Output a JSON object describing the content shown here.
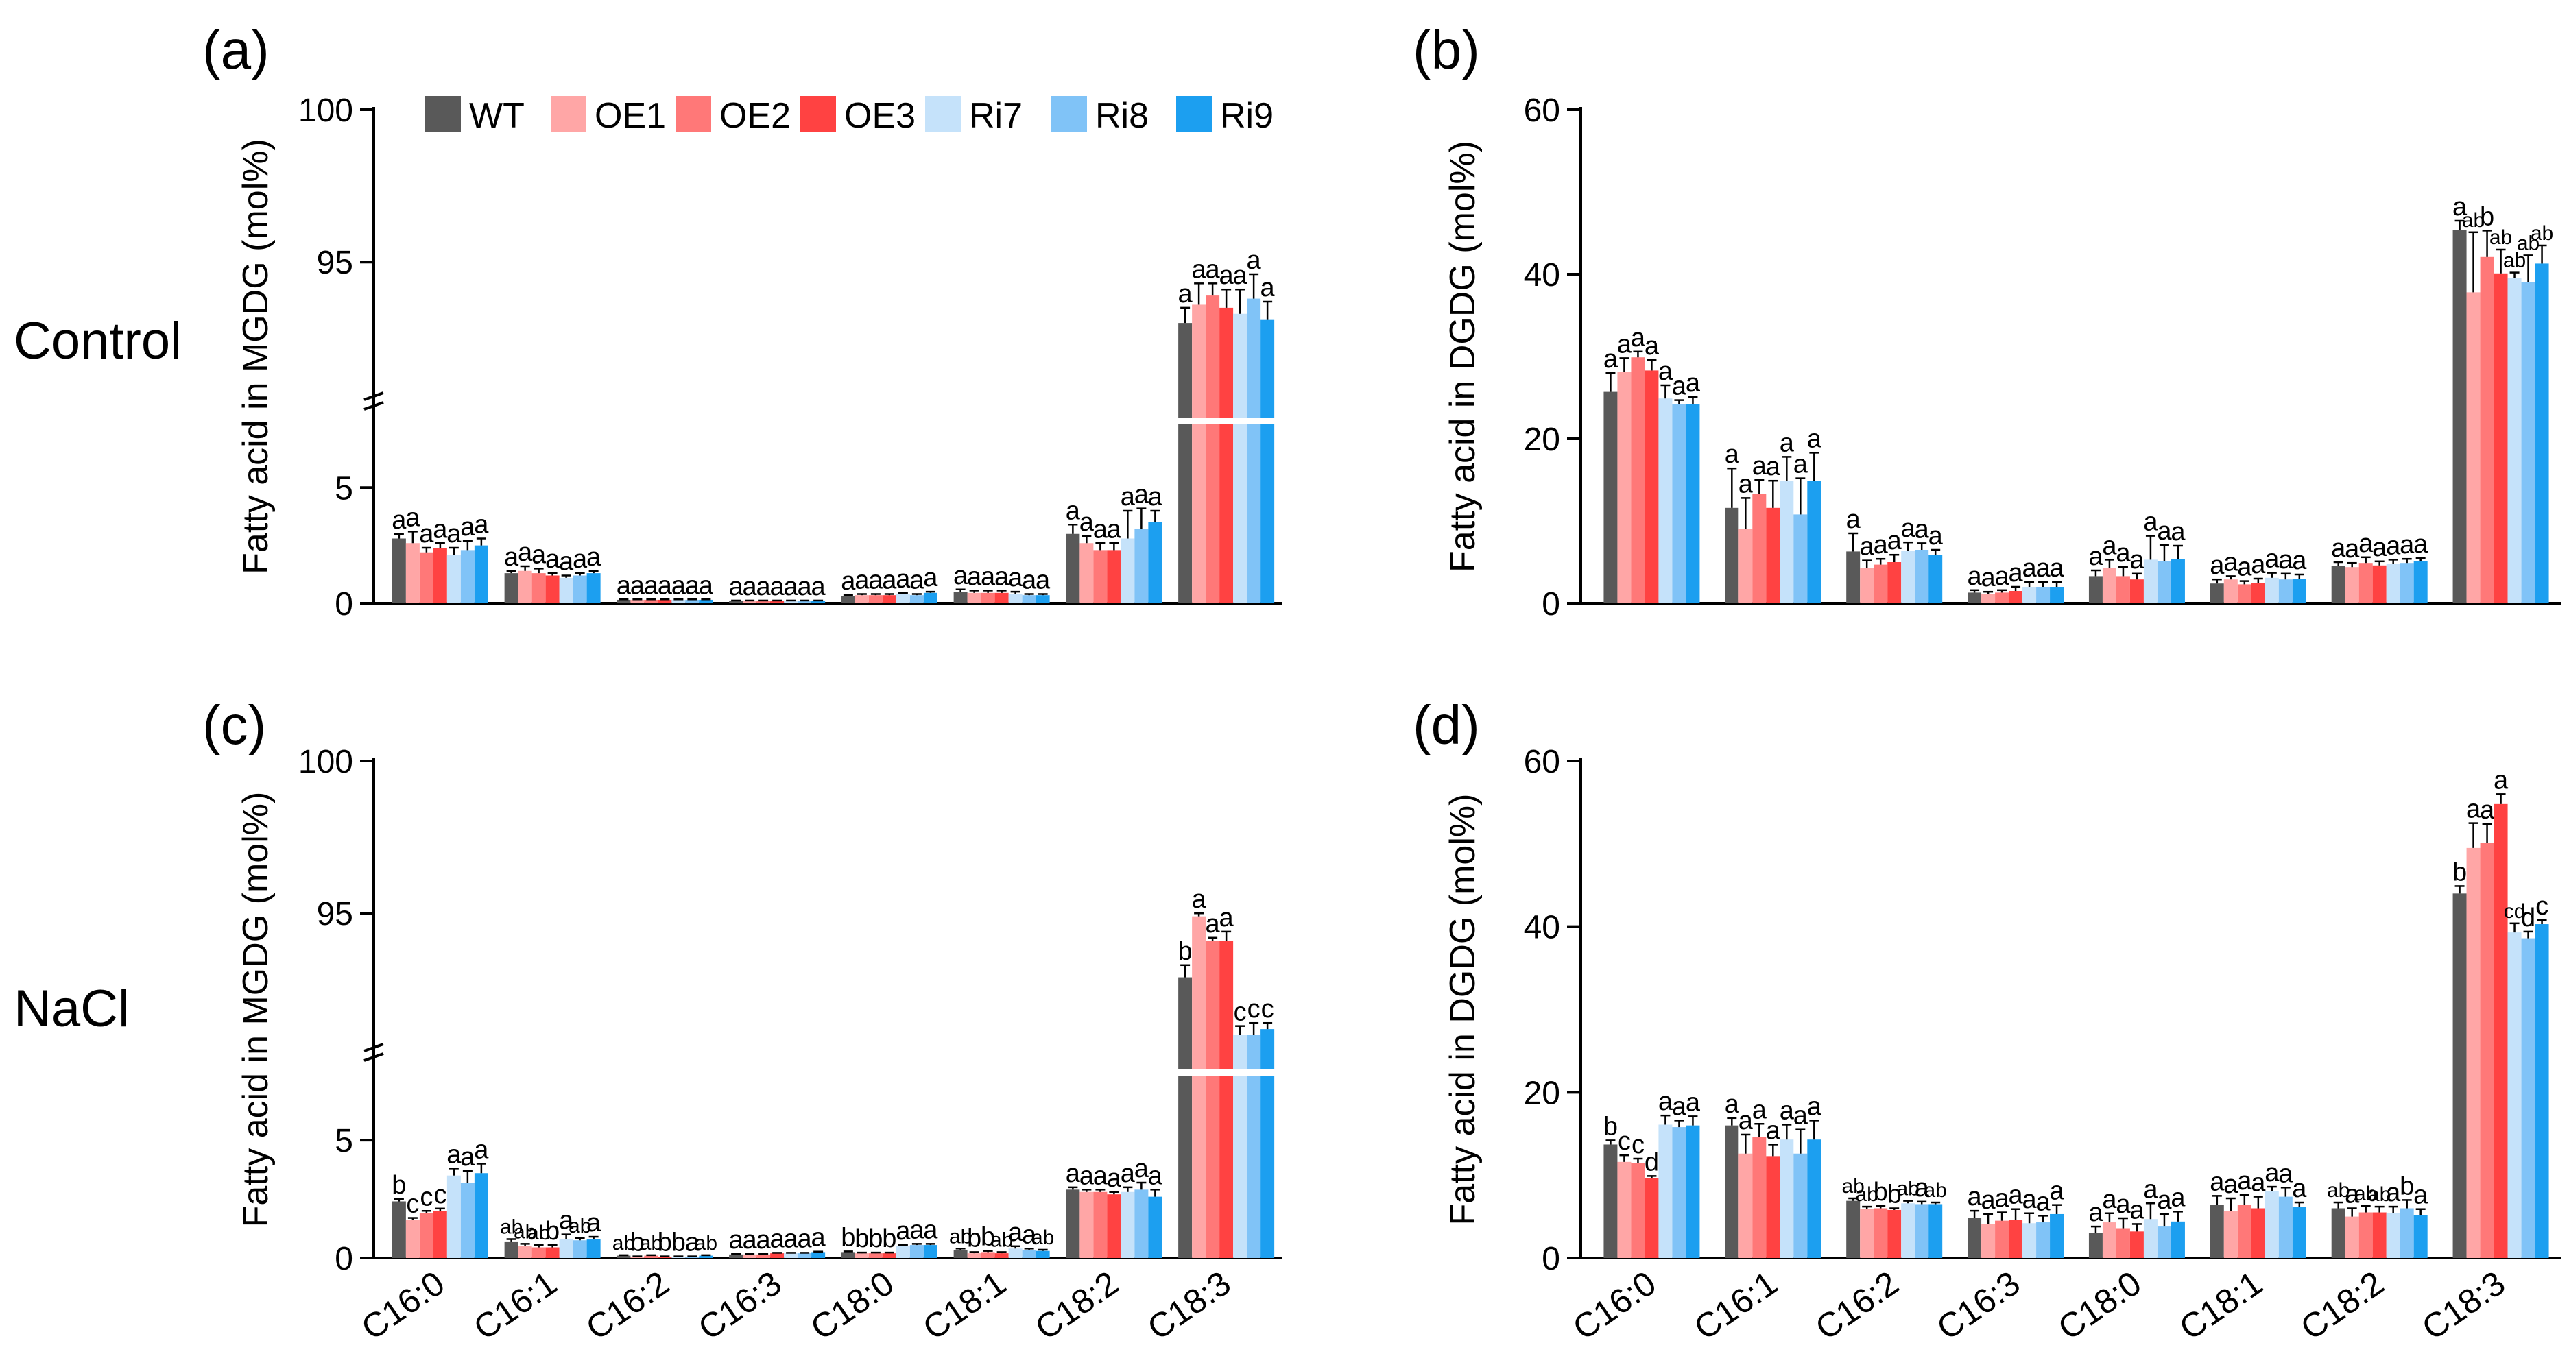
{
  "figure": {
    "row_labels": [
      "Control",
      "NaCl"
    ],
    "legend": [
      {
        "name": "WT",
        "color": "#595959"
      },
      {
        "name": "OE1",
        "color": "#FFA6A6"
      },
      {
        "name": "OE2",
        "color": "#FF7878"
      },
      {
        "name": "OE3",
        "color": "#FF4242"
      },
      {
        "name": "Ri7",
        "color": "#C5E2FA"
      },
      {
        "name": "Ri8",
        "color": "#80C3F7"
      },
      {
        "name": "Ri9",
        "color": "#1C9FF0"
      }
    ]
  },
  "chart_data": [
    {
      "type": "bar",
      "panel": "(a)",
      "ylabel": "Fatty acid in MGDG (mol%)",
      "axis_break": true,
      "ylim_lower": [
        0,
        8
      ],
      "yticks_lower": [
        0,
        5
      ],
      "ylim_upper": [
        91,
        100
      ],
      "yticks_upper": [
        95,
        100
      ],
      "categories": [
        "C16:0",
        "C16:1",
        "C16:2",
        "C16:3",
        "C18:0",
        "C18:1",
        "C18:2",
        "C18:3"
      ],
      "show_xticklabels": false,
      "series": [
        {
          "name": "WT",
          "values": [
            2.8,
            1.3,
            0.15,
            0.1,
            0.3,
            0.5,
            3.0,
            93.0
          ],
          "errors": [
            0.2,
            0.1,
            0.02,
            0.02,
            0.05,
            0.1,
            0.4,
            0.5
          ]
        },
        {
          "name": "OE1",
          "values": [
            2.6,
            1.4,
            0.15,
            0.1,
            0.35,
            0.45,
            2.6,
            93.6
          ],
          "errors": [
            0.5,
            0.2,
            0.02,
            0.02,
            0.05,
            0.1,
            0.3,
            0.7
          ]
        },
        {
          "name": "OE2",
          "values": [
            2.2,
            1.3,
            0.15,
            0.1,
            0.35,
            0.45,
            2.3,
            93.9
          ],
          "errors": [
            0.2,
            0.2,
            0.02,
            0.02,
            0.05,
            0.1,
            0.3,
            0.4
          ]
        },
        {
          "name": "OE3",
          "values": [
            2.4,
            1.2,
            0.15,
            0.1,
            0.35,
            0.45,
            2.3,
            93.5
          ],
          "errors": [
            0.2,
            0.1,
            0.02,
            0.02,
            0.05,
            0.1,
            0.3,
            0.6
          ]
        },
        {
          "name": "Ri7",
          "values": [
            2.1,
            1.1,
            0.15,
            0.1,
            0.4,
            0.4,
            2.8,
            93.3
          ],
          "errors": [
            0.3,
            0.1,
            0.02,
            0.02,
            0.05,
            0.1,
            1.2,
            0.8
          ]
        },
        {
          "name": "Ri8",
          "values": [
            2.3,
            1.2,
            0.15,
            0.1,
            0.35,
            0.35,
            3.2,
            93.8
          ],
          "errors": [
            0.4,
            0.1,
            0.02,
            0.02,
            0.05,
            0.05,
            0.9,
            0.8
          ]
        },
        {
          "name": "Ri9",
          "values": [
            2.5,
            1.3,
            0.15,
            0.1,
            0.45,
            0.35,
            3.5,
            93.1
          ],
          "errors": [
            0.3,
            0.1,
            0.02,
            0.02,
            0.05,
            0.05,
            0.5,
            0.6
          ]
        }
      ],
      "significance": [
        [
          "a",
          "a",
          "a",
          "a",
          "a",
          "a",
          "a"
        ],
        [
          "a",
          "a",
          "a",
          "a",
          "a",
          "a",
          "a"
        ],
        [
          "a",
          "a",
          "a",
          "a",
          "a",
          "a",
          "a"
        ],
        [
          "a",
          "a",
          "a",
          "a",
          "a",
          "a",
          "a"
        ],
        [
          "a",
          "a",
          "a",
          "a",
          "a",
          "a",
          "a"
        ],
        [
          "a",
          "a",
          "a",
          "a",
          "a",
          "a",
          "a"
        ],
        [
          "a",
          "a",
          "a",
          "a",
          "a",
          "a",
          "a"
        ],
        [
          "a",
          "a",
          "a",
          "a",
          "a",
          "a",
          "a"
        ]
      ]
    },
    {
      "type": "bar",
      "panel": "(b)",
      "ylabel": "Fatty acid in DGDG (mol%)",
      "axis_break": false,
      "ylim": [
        0,
        60
      ],
      "yticks": [
        0,
        20,
        40,
        60
      ],
      "categories": [
        "C16:0",
        "C16:1",
        "C16:2",
        "C16:3",
        "C18:0",
        "C18:1",
        "C18:2",
        "C18:3"
      ],
      "show_xticklabels": false,
      "series": [
        {
          "name": "WT",
          "values": [
            25.7,
            11.6,
            6.3,
            1.3,
            3.3,
            2.4,
            4.5,
            45.4
          ],
          "errors": [
            2.3,
            4.8,
            2.2,
            0.3,
            0.7,
            0.5,
            0.5,
            1.1
          ]
        },
        {
          "name": "OE1",
          "values": [
            28.1,
            9.0,
            4.3,
            1.1,
            4.3,
            2.9,
            4.4,
            37.8
          ],
          "errors": [
            1.7,
            3.8,
            0.9,
            0.3,
            1.0,
            0.4,
            0.5,
            7.3
          ]
        },
        {
          "name": "OE2",
          "values": [
            29.9,
            13.3,
            4.7,
            1.3,
            3.3,
            2.3,
            4.9,
            42.1
          ],
          "errors": [
            0.7,
            1.7,
            0.7,
            0.3,
            1.1,
            0.4,
            0.7,
            3.2
          ]
        },
        {
          "name": "OE3",
          "values": [
            28.3,
            11.6,
            5.0,
            1.5,
            2.9,
            2.5,
            4.6,
            40.1
          ],
          "errors": [
            1.3,
            3.3,
            0.9,
            0.5,
            0.7,
            0.5,
            0.5,
            2.9
          ]
        },
        {
          "name": "Ri7",
          "values": [
            24.9,
            14.9,
            6.4,
            2.0,
            5.3,
            3.1,
            4.8,
            39.5
          ],
          "errors": [
            1.6,
            2.9,
            1.0,
            0.6,
            2.9,
            0.6,
            0.5,
            0.7
          ]
        },
        {
          "name": "Ri8",
          "values": [
            24.2,
            10.8,
            6.5,
            2.0,
            5.1,
            2.9,
            4.9,
            39.0
          ],
          "errors": [
            0.5,
            4.4,
            0.8,
            0.6,
            2.0,
            0.7,
            0.5,
            3.3
          ]
        },
        {
          "name": "Ri9",
          "values": [
            24.2,
            14.9,
            5.9,
            2.0,
            5.4,
            3.0,
            5.1,
            41.3
          ],
          "errors": [
            0.9,
            3.4,
            0.6,
            0.6,
            1.6,
            0.5,
            0.4,
            2.2
          ]
        }
      ],
      "significance": [
        [
          "a",
          "a",
          "a",
          "a",
          "a",
          "a",
          "a"
        ],
        [
          "a",
          "a",
          "a",
          "a",
          "a",
          "a",
          "a"
        ],
        [
          "a",
          "a",
          "a",
          "a",
          "a",
          "a",
          "a"
        ],
        [
          "a",
          "a",
          "a",
          "a",
          "a",
          "a",
          "a"
        ],
        [
          "a",
          "a",
          "a",
          "a",
          "a",
          "a",
          "a"
        ],
        [
          "a",
          "a",
          "a",
          "a",
          "a",
          "a",
          "a"
        ],
        [
          "a",
          "a",
          "a",
          "a",
          "a",
          "a",
          "a"
        ],
        [
          "a",
          "ab",
          "b",
          "ab",
          "ab",
          "ab",
          "ab"
        ]
      ]
    },
    {
      "type": "bar",
      "panel": "(c)",
      "ylabel": "Fatty acid in MGDG (mol%)",
      "axis_break": true,
      "ylim_lower": [
        0,
        8
      ],
      "yticks_lower": [
        0,
        5
      ],
      "ylim_upper": [
        91,
        100
      ],
      "yticks_upper": [
        95,
        100
      ],
      "categories": [
        "C16:0",
        "C16:1",
        "C16:2",
        "C16:3",
        "C18:0",
        "C18:1",
        "C18:2",
        "C18:3"
      ],
      "show_xticklabels": true,
      "series": [
        {
          "name": "WT",
          "values": [
            2.4,
            0.7,
            0.1,
            0.15,
            0.25,
            0.35,
            2.9,
            92.9
          ],
          "errors": [
            0.1,
            0.1,
            0.02,
            0.02,
            0.03,
            0.05,
            0.1,
            0.4
          ]
        },
        {
          "name": "OE1",
          "values": [
            1.6,
            0.5,
            0.05,
            0.15,
            0.2,
            0.2,
            2.8,
            94.9
          ],
          "errors": [
            0.1,
            0.1,
            0.02,
            0.02,
            0.03,
            0.05,
            0.1,
            0.1
          ]
        },
        {
          "name": "OE2",
          "values": [
            1.9,
            0.45,
            0.1,
            0.15,
            0.2,
            0.25,
            2.8,
            94.1
          ],
          "errors": [
            0.1,
            0.1,
            0.02,
            0.02,
            0.03,
            0.05,
            0.1,
            0.1
          ]
        },
        {
          "name": "OE3",
          "values": [
            2.0,
            0.45,
            0.05,
            0.2,
            0.2,
            0.2,
            2.7,
            94.1
          ],
          "errors": [
            0.1,
            0.1,
            0.02,
            0.02,
            0.03,
            0.05,
            0.1,
            0.3
          ]
        },
        {
          "name": "Ri7",
          "values": [
            3.5,
            0.8,
            0.05,
            0.2,
            0.5,
            0.4,
            2.8,
            91.0
          ],
          "errors": [
            0.3,
            0.2,
            0.02,
            0.02,
            0.05,
            0.1,
            0.2,
            0.3
          ]
        },
        {
          "name": "Ri8",
          "values": [
            3.2,
            0.75,
            0.05,
            0.2,
            0.55,
            0.35,
            2.9,
            91.0
          ],
          "errors": [
            0.5,
            0.1,
            0.02,
            0.02,
            0.05,
            0.05,
            0.3,
            0.4
          ]
        },
        {
          "name": "Ri9",
          "values": [
            3.6,
            0.8,
            0.1,
            0.25,
            0.55,
            0.3,
            2.6,
            91.2
          ],
          "errors": [
            0.4,
            0.1,
            0.02,
            0.02,
            0.05,
            0.05,
            0.3,
            0.2
          ]
        }
      ],
      "significance": [
        [
          "b",
          "c",
          "c",
          "c",
          "a",
          "a",
          "a"
        ],
        [
          "ab",
          "ab",
          "ab",
          "b",
          "a",
          "ab",
          "a"
        ],
        [
          "ab",
          "b",
          "ab",
          "b",
          "b",
          "a",
          "ab"
        ],
        [
          "a",
          "a",
          "a",
          "a",
          "a",
          "a",
          "a"
        ],
        [
          "b",
          "b",
          "b",
          "b",
          "a",
          "a",
          "a"
        ],
        [
          "ab",
          "b",
          "b",
          "ab",
          "a",
          "a",
          "ab"
        ],
        [
          "a",
          "a",
          "a",
          "a",
          "a",
          "a",
          "a"
        ],
        [
          "b",
          "a",
          "a",
          "a",
          "c",
          "c",
          "c"
        ]
      ]
    },
    {
      "type": "bar",
      "panel": "(d)",
      "ylabel": "Fatty acid in DGDG (mol%)",
      "axis_break": false,
      "ylim": [
        0,
        60
      ],
      "yticks": [
        0,
        20,
        40,
        60
      ],
      "categories": [
        "C16:0",
        "C16:1",
        "C16:2",
        "C16:3",
        "C18:0",
        "C18:1",
        "C18:2",
        "C18:3"
      ],
      "show_xticklabels": true,
      "series": [
        {
          "name": "WT",
          "values": [
            13.7,
            16.0,
            6.9,
            4.8,
            3.0,
            6.4,
            6.0,
            44.0
          ],
          "errors": [
            0.5,
            0.9,
            0.3,
            0.9,
            0.8,
            1.1,
            0.7,
            0.9
          ]
        },
        {
          "name": "OE1",
          "values": [
            11.6,
            12.6,
            5.9,
            4.1,
            4.3,
            5.7,
            5.0,
            49.5
          ],
          "errors": [
            0.8,
            2.3,
            0.3,
            1.2,
            1.1,
            1.5,
            1.0,
            3.0
          ]
        },
        {
          "name": "OE2",
          "values": [
            11.5,
            14.6,
            6.0,
            4.5,
            3.6,
            6.4,
            5.5,
            50.1
          ],
          "errors": [
            0.5,
            1.6,
            0.3,
            1.0,
            1.2,
            1.2,
            0.8,
            2.3
          ]
        },
        {
          "name": "OE3",
          "values": [
            9.6,
            12.3,
            5.8,
            4.6,
            3.2,
            6.0,
            5.5,
            54.8
          ],
          "errors": [
            0.3,
            1.4,
            0.2,
            1.3,
            0.9,
            1.4,
            0.7,
            1.2
          ]
        },
        {
          "name": "Ri7",
          "values": [
            16.1,
            14.3,
            6.6,
            4.2,
            4.7,
            8.1,
            5.4,
            39.3
          ],
          "errors": [
            1.1,
            1.8,
            0.3,
            1.2,
            1.9,
            0.5,
            0.8,
            1.1
          ]
        },
        {
          "name": "Ri8",
          "values": [
            15.8,
            12.6,
            6.5,
            4.3,
            3.8,
            7.4,
            6.0,
            38.6
          ],
          "errors": [
            0.8,
            2.9,
            0.3,
            0.8,
            1.5,
            1.1,
            1.0,
            0.8
          ]
        },
        {
          "name": "Ri9",
          "values": [
            16.0,
            14.3,
            6.5,
            5.3,
            4.4,
            6.2,
            5.2,
            40.3
          ],
          "errors": [
            1.1,
            2.3,
            0.2,
            1.1,
            1.2,
            0.5,
            0.7,
            0.5
          ]
        }
      ],
      "significance": [
        [
          "b",
          "c",
          "c",
          "d",
          "a",
          "a",
          "a"
        ],
        [
          "a",
          "a",
          "a",
          "a",
          "a",
          "a",
          "a"
        ],
        [
          "ab",
          "ab",
          "b",
          "b",
          "ab",
          "a",
          "ab"
        ],
        [
          "a",
          "a",
          "a",
          "a",
          "a",
          "a",
          "a"
        ],
        [
          "a",
          "a",
          "a",
          "a",
          "a",
          "a",
          "a"
        ],
        [
          "a",
          "a",
          "a",
          "a",
          "a",
          "a",
          "a"
        ],
        [
          "ab",
          "a",
          "ab",
          "ab",
          "a",
          "b",
          "a"
        ],
        [
          "b",
          "a",
          "a",
          "a",
          "cd",
          "d",
          "c"
        ]
      ]
    }
  ]
}
